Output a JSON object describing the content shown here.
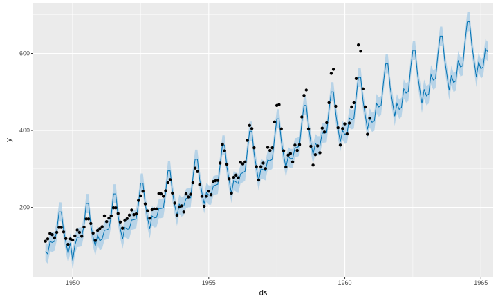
{
  "chart_data": {
    "type": "line",
    "title": "",
    "xlabel": "ds",
    "ylabel": "y",
    "xlim": [
      1948.55,
      1965.45
    ],
    "ylim": [
      20,
      730
    ],
    "x_ticks": [
      1950,
      1955,
      1960,
      1965
    ],
    "x_tick_labels": [
      "1950",
      "1955",
      "1960",
      "1965"
    ],
    "y_ticks": [
      200,
      400,
      600
    ],
    "y_tick_labels": [
      "200",
      "400",
      "600"
    ],
    "grid": true,
    "legend": "none",
    "colors": {
      "panel": "#ebebeb",
      "grid_major": "#ffffff",
      "forecast_line": "#0072b2",
      "uncertainty_band": "#a6cbe6",
      "observed_points": "#000000"
    },
    "series": [
      {
        "type": "scatter",
        "x": [
          1949.0,
          1949.083,
          1949.167,
          1949.25,
          1949.333,
          1949.417,
          1949.5,
          1949.583,
          1949.667,
          1949.75,
          1949.833,
          1949.917,
          1950.0,
          1950.083,
          1950.167,
          1950.25,
          1950.333,
          1950.417,
          1950.5,
          1950.583,
          1950.667,
          1950.75,
          1950.833,
          1950.917,
          1951.0,
          1951.083,
          1951.167,
          1951.25,
          1951.333,
          1951.417,
          1951.5,
          1951.583,
          1951.667,
          1951.75,
          1951.833,
          1951.917,
          1952.0,
          1952.083,
          1952.167,
          1952.25,
          1952.333,
          1952.417,
          1952.5,
          1952.583,
          1952.667,
          1952.75,
          1952.833,
          1952.917,
          1953.0,
          1953.083,
          1953.167,
          1953.25,
          1953.333,
          1953.417,
          1953.5,
          1953.583,
          1953.667,
          1953.75,
          1953.833,
          1953.917,
          1954.0,
          1954.083,
          1954.167,
          1954.25,
          1954.333,
          1954.417,
          1954.5,
          1954.583,
          1954.667,
          1954.75,
          1954.833,
          1954.917,
          1955.0,
          1955.083,
          1955.167,
          1955.25,
          1955.333,
          1955.417,
          1955.5,
          1955.583,
          1955.667,
          1955.75,
          1955.833,
          1955.917,
          1956.0,
          1956.083,
          1956.167,
          1956.25,
          1956.333,
          1956.417,
          1956.5,
          1956.583,
          1956.667,
          1956.75,
          1956.833,
          1956.917,
          1957.0,
          1957.083,
          1957.167,
          1957.25,
          1957.333,
          1957.417,
          1957.5,
          1957.583,
          1957.667,
          1957.75,
          1957.833,
          1957.917,
          1958.0,
          1958.083,
          1958.167,
          1958.25,
          1958.333,
          1958.417,
          1958.5,
          1958.583,
          1958.667,
          1958.75,
          1958.833,
          1958.917,
          1959.0,
          1959.083,
          1959.167,
          1959.25,
          1959.333,
          1959.417,
          1959.5,
          1959.583,
          1959.667,
          1959.75,
          1959.833,
          1959.917,
          1960.0,
          1960.083,
          1960.167,
          1960.25,
          1960.333,
          1960.417,
          1960.5,
          1960.583,
          1960.667,
          1960.75,
          1960.833,
          1960.917
        ],
        "values": [
          112,
          118,
          132,
          129,
          121,
          135,
          148,
          148,
          136,
          119,
          104,
          118,
          115,
          126,
          141,
          135,
          125,
          149,
          170,
          170,
          158,
          133,
          114,
          140,
          145,
          150,
          178,
          163,
          172,
          178,
          199,
          199,
          184,
          162,
          146,
          166,
          171,
          180,
          193,
          181,
          183,
          218,
          230,
          242,
          209,
          191,
          172,
          194,
          196,
          196,
          236,
          235,
          229,
          243,
          264,
          272,
          237,
          211,
          180,
          201,
          204,
          188,
          235,
          227,
          234,
          264,
          302,
          293,
          259,
          229,
          203,
          229,
          242,
          233,
          267,
          269,
          270,
          315,
          364,
          347,
          312,
          274,
          237,
          278,
          284,
          277,
          317,
          313,
          318,
          374,
          413,
          405,
          355,
          306,
          271,
          306,
          315,
          301,
          356,
          348,
          355,
          422,
          465,
          467,
          404,
          347,
          305,
          336,
          340,
          318,
          362,
          348,
          363,
          435,
          491,
          505,
          404,
          359,
          310,
          337,
          360,
          342,
          406,
          396,
          420,
          472,
          548,
          559,
          463,
          407,
          362,
          405,
          417,
          391,
          419,
          461,
          472,
          535,
          622,
          606,
          508,
          461,
          390,
          432
        ]
      },
      {
        "type": "line",
        "x_start": 1949.0,
        "x_step": 0.08333,
        "values": [
          85,
          79,
          111,
          109,
          112,
          140,
          188,
          188,
          142,
          110,
          80,
          108,
          62,
          102,
          122,
          123,
          124,
          153,
          210,
          210,
          154,
          123,
          99,
          128,
          113,
          118,
          140,
          142,
          144,
          178,
          235,
          235,
          180,
          145,
          117,
          148,
          143,
          144,
          167,
          168,
          170,
          207,
          263,
          263,
          209,
          173,
          144,
          178,
          173,
          174,
          197,
          197,
          199,
          240,
          295,
          295,
          240,
          206,
          177,
          208,
          201,
          204,
          223,
          225,
          225,
          275,
          325,
          325,
          272,
          237,
          209,
          239,
          232,
          232,
          256,
          258,
          260,
          310,
          362,
          362,
          305,
          270,
          236,
          270,
          266,
          262,
          287,
          290,
          294,
          345,
          398,
          398,
          339,
          303,
          268,
          300,
          298,
          295,
          323,
          321,
          325,
          380,
          430,
          430,
          372,
          336,
          303,
          332,
          327,
          327,
          355,
          356,
          360,
          418,
          465,
          465,
          410,
          370,
          337,
          366,
          360,
          360,
          393,
          393,
          394,
          452,
          500,
          500,
          444,
          404,
          370,
          400,
          390,
          392,
          432,
          428,
          430,
          486,
          538,
          538,
          478,
          440,
          403,
          433,
          421,
          424,
          470,
          461,
          465,
          522,
          573,
          573,
          512,
          474,
          437,
          470,
          455,
          460,
          508,
          497,
          501,
          560,
          608,
          608,
          548,
          509,
          470,
          507,
          490,
          495,
          545,
          531,
          535,
          595,
          645,
          645,
          585,
          545,
          504,
          543,
          524,
          529,
          582,
          565,
          568,
          630,
          682,
          683,
          622,
          581,
          538,
          578,
          560,
          565,
          612,
          605
        ]
      }
    ],
    "uncertainty_halfwidth": 25
  }
}
